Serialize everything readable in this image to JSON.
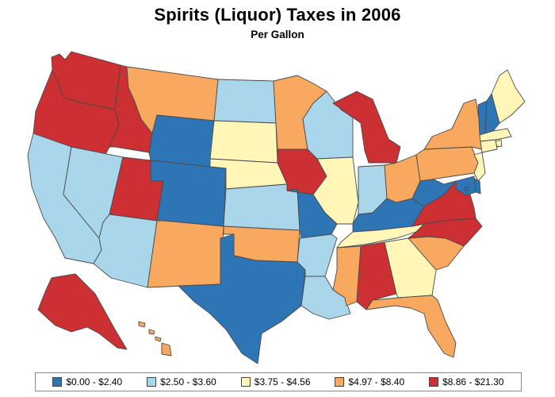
{
  "title": "Spirits (Liquor) Taxes in 2006",
  "subtitle": "Per Gallon",
  "colors": {
    "bin1": "#2e75b6",
    "bin2": "#a9d6ea",
    "bin3": "#fff6b8",
    "bin4": "#f9a95f",
    "bin5": "#cc3033"
  },
  "legend": [
    {
      "label": "$0.00 - $2.40",
      "color": "#2e75b6"
    },
    {
      "label": "$2.50 - $3.60",
      "color": "#a9d6ea"
    },
    {
      "label": "$3.75 - $4.56",
      "color": "#fff6b8"
    },
    {
      "label": "$4.97 - $8.40",
      "color": "#f9a95f"
    },
    {
      "label": "$8.86 - $21.30",
      "color": "#cc3033"
    }
  ],
  "chart_data": {
    "type": "choropleth",
    "title": "Spirits (Liquor) Taxes in 2006",
    "subtitle": "Per Gallon",
    "bins": [
      "$0.00 - $2.40",
      "$2.50 - $3.60",
      "$3.75 - $4.56",
      "$4.97 - $8.40",
      "$8.86 - $21.30"
    ],
    "states": [
      {
        "state": "WA",
        "bin": 5
      },
      {
        "state": "OR",
        "bin": 5
      },
      {
        "state": "CA",
        "bin": 2
      },
      {
        "state": "ID",
        "bin": 5
      },
      {
        "state": "NV",
        "bin": 2
      },
      {
        "state": "UT",
        "bin": 5
      },
      {
        "state": "AZ",
        "bin": 2
      },
      {
        "state": "MT",
        "bin": 4
      },
      {
        "state": "WY",
        "bin": 1
      },
      {
        "state": "CO",
        "bin": 1
      },
      {
        "state": "NM",
        "bin": 4
      },
      {
        "state": "ND",
        "bin": 2
      },
      {
        "state": "SD",
        "bin": 3
      },
      {
        "state": "NE",
        "bin": 3
      },
      {
        "state": "KS",
        "bin": 2
      },
      {
        "state": "OK",
        "bin": 4
      },
      {
        "state": "TX",
        "bin": 1
      },
      {
        "state": "MN",
        "bin": 4
      },
      {
        "state": "IA",
        "bin": 5
      },
      {
        "state": "MO",
        "bin": 1
      },
      {
        "state": "AR",
        "bin": 2
      },
      {
        "state": "LA",
        "bin": 2
      },
      {
        "state": "WI",
        "bin": 2
      },
      {
        "state": "IL",
        "bin": 3
      },
      {
        "state": "MI",
        "bin": 5
      },
      {
        "state": "IN",
        "bin": 2
      },
      {
        "state": "OH",
        "bin": 4
      },
      {
        "state": "KY",
        "bin": 1
      },
      {
        "state": "TN",
        "bin": 3
      },
      {
        "state": "MS",
        "bin": 4
      },
      {
        "state": "AL",
        "bin": 5
      },
      {
        "state": "GA",
        "bin": 3
      },
      {
        "state": "FL",
        "bin": 4
      },
      {
        "state": "SC",
        "bin": 4
      },
      {
        "state": "NC",
        "bin": 5
      },
      {
        "state": "VA",
        "bin": 5
      },
      {
        "state": "WV",
        "bin": 1
      },
      {
        "state": "PA",
        "bin": 4
      },
      {
        "state": "NY",
        "bin": 4
      },
      {
        "state": "VT",
        "bin": 1
      },
      {
        "state": "NH",
        "bin": 1
      },
      {
        "state": "ME",
        "bin": 3
      },
      {
        "state": "MA",
        "bin": 3
      },
      {
        "state": "CT",
        "bin": 3
      },
      {
        "state": "RI",
        "bin": 3
      },
      {
        "state": "NJ",
        "bin": 3
      },
      {
        "state": "DE",
        "bin": 1
      },
      {
        "state": "MD",
        "bin": 1
      },
      {
        "state": "DC",
        "bin": 1
      },
      {
        "state": "AK",
        "bin": 5
      },
      {
        "state": "HI",
        "bin": 4
      }
    ]
  }
}
